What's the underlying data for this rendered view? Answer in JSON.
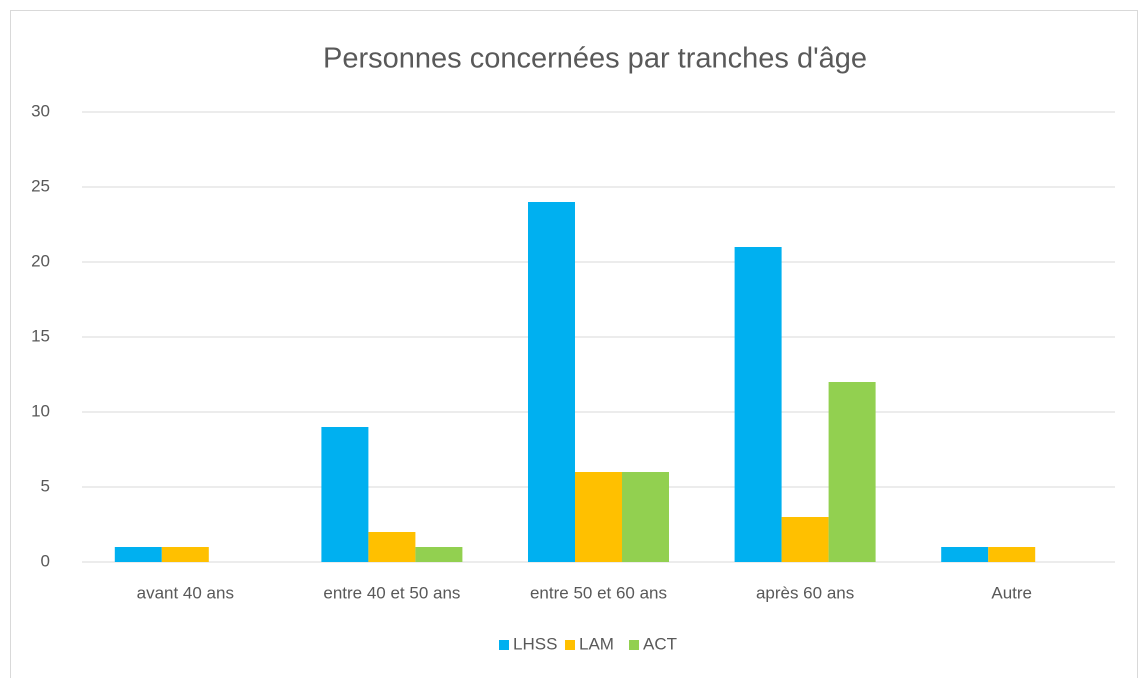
{
  "chart_data": {
    "type": "bar",
    "title": "Personnes concernées par tranches d'âge",
    "categories": [
      "avant 40 ans",
      "entre 40 et 50 ans",
      "entre 50 et 60 ans",
      "après 60 ans",
      "Autre"
    ],
    "series": [
      {
        "name": "LHSS",
        "color": "#00b0f0",
        "values": [
          1,
          9,
          24,
          21,
          1
        ]
      },
      {
        "name": "LAM",
        "color": "#ffc000",
        "values": [
          1,
          2,
          6,
          3,
          1
        ]
      },
      {
        "name": "ACT",
        "color": "#92d050",
        "values": [
          0,
          1,
          6,
          12,
          0
        ]
      }
    ],
    "ylim": [
      0,
      30
    ],
    "yticks": [
      0,
      5,
      10,
      15,
      20,
      25,
      30
    ],
    "grid": true,
    "legend": "bottom"
  }
}
